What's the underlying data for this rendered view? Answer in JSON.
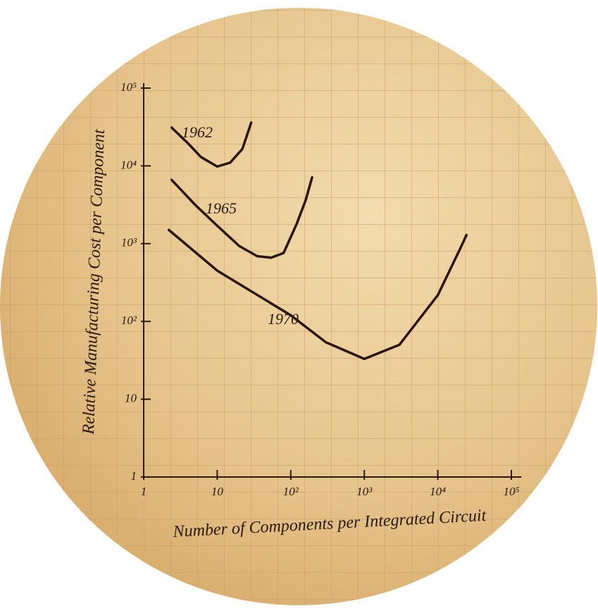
{
  "chart_data": {
    "type": "line",
    "xlabel": "Number of Components per Integrated Circuit",
    "ylabel": "Relative Manufacturing Cost per Component",
    "xscale": "log",
    "yscale": "log",
    "xlim": [
      1,
      100000
    ],
    "ylim": [
      1,
      100000
    ],
    "xticks": [
      1,
      10,
      {
        "value": 100,
        "label": "10²"
      },
      {
        "value": 1000,
        "label": "10³"
      },
      {
        "value": 10000,
        "label": "10⁴"
      },
      {
        "value": 100000,
        "label": "10⁵"
      }
    ],
    "yticks": [
      1,
      10,
      {
        "value": 100,
        "label": "10²"
      },
      {
        "value": 1000,
        "label": "10³"
      },
      {
        "value": 10000,
        "label": "10⁴"
      },
      {
        "value": 100000,
        "label": "10⁵"
      }
    ],
    "series": [
      {
        "name": "1962",
        "color": "#2a1608",
        "x": [
          2.4,
          4,
          6,
          10,
          15,
          22,
          29
        ],
        "values": [
          31000,
          19500,
          13000,
          9800,
          11000,
          16500,
          36000
        ]
      },
      {
        "name": "1965",
        "color": "#2a1608",
        "x": [
          2.4,
          5,
          10,
          20,
          35,
          54,
          80,
          120,
          160,
          195
        ],
        "values": [
          6600,
          3160,
          1700,
          930,
          690,
          660,
          760,
          1780,
          3650,
          7100
        ]
      },
      {
        "name": "1970",
        "color": "#2a1608",
        "x": [
          2.2,
          10,
          100,
          300,
          1000,
          3000,
          10000,
          20000,
          24500
        ],
        "values": [
          1500,
          450,
          120,
          54,
          33,
          50,
          218,
          850,
          1290
        ]
      }
    ]
  }
}
